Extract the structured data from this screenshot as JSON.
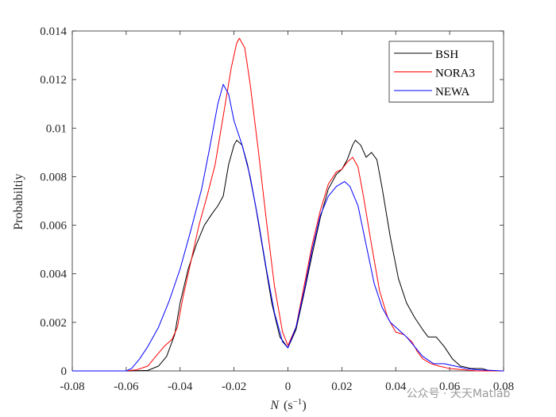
{
  "chart_data": {
    "type": "line",
    "xlabel_italic": "N",
    "xlabel_units": "(s",
    "xlabel_exp": "−1",
    "xlabel_close": ")",
    "ylabel": "Probabiltiy",
    "xlim": [
      -0.08,
      0.08
    ],
    "ylim": [
      0,
      0.014
    ],
    "xticks": [
      -0.08,
      -0.06,
      -0.04,
      -0.02,
      0,
      0.02,
      0.04,
      0.06,
      0.08
    ],
    "xtick_labels": [
      "-0.08",
      "-0.06",
      "-0.04",
      "-0.02",
      "0",
      "0.02",
      "0.04",
      "0.06",
      "0.08"
    ],
    "yticks": [
      0,
      0.002,
      0.004,
      0.006,
      0.008,
      0.01,
      0.012,
      0.014
    ],
    "ytick_labels": [
      "0",
      "0.002",
      "0.004",
      "0.006",
      "0.008",
      "0.01",
      "0.012",
      "0.014"
    ],
    "grid": false,
    "legend_position": "top-right",
    "series": [
      {
        "name": "BSH",
        "color": "#000000",
        "points": [
          [
            -0.08,
            0
          ],
          [
            -0.06,
            0
          ],
          [
            -0.052,
            2e-05
          ],
          [
            -0.048,
            0.0002
          ],
          [
            -0.045,
            0.0006
          ],
          [
            -0.042,
            0.0015
          ],
          [
            -0.04,
            0.0028
          ],
          [
            -0.037,
            0.0042
          ],
          [
            -0.034,
            0.0052
          ],
          [
            -0.031,
            0.006
          ],
          [
            -0.028,
            0.0065
          ],
          [
            -0.026,
            0.0068
          ],
          [
            -0.024,
            0.0072
          ],
          [
            -0.022,
            0.0085
          ],
          [
            -0.02,
            0.0093
          ],
          [
            -0.019,
            0.0095
          ],
          [
            -0.017,
            0.0093
          ],
          [
            -0.015,
            0.0085
          ],
          [
            -0.012,
            0.0068
          ],
          [
            -0.009,
            0.0048
          ],
          [
            -0.006,
            0.0028
          ],
          [
            -0.003,
            0.0014
          ],
          [
            0,
            0.00095
          ],
          [
            0.003,
            0.0017
          ],
          [
            0.006,
            0.0032
          ],
          [
            0.009,
            0.0048
          ],
          [
            0.012,
            0.0063
          ],
          [
            0.015,
            0.0075
          ],
          [
            0.018,
            0.0081
          ],
          [
            0.02,
            0.0083
          ],
          [
            0.022,
            0.0087
          ],
          [
            0.024,
            0.0093
          ],
          [
            0.025,
            0.0095
          ],
          [
            0.027,
            0.0093
          ],
          [
            0.029,
            0.0088
          ],
          [
            0.031,
            0.009
          ],
          [
            0.033,
            0.0087
          ],
          [
            0.035,
            0.0075
          ],
          [
            0.038,
            0.0055
          ],
          [
            0.041,
            0.0038
          ],
          [
            0.044,
            0.0028
          ],
          [
            0.047,
            0.0022
          ],
          [
            0.05,
            0.0017
          ],
          [
            0.052,
            0.0014
          ],
          [
            0.055,
            0.0014
          ],
          [
            0.058,
            0.001
          ],
          [
            0.061,
            0.0005
          ],
          [
            0.064,
            0.0002
          ],
          [
            0.068,
            0.0001
          ],
          [
            0.072,
            0.0001
          ],
          [
            0.075,
            0
          ],
          [
            0.08,
            0
          ]
        ]
      },
      {
        "name": "NORA3",
        "color": "#ff0000",
        "points": [
          [
            -0.08,
            0
          ],
          [
            -0.06,
            0
          ],
          [
            -0.056,
            5e-05
          ],
          [
            -0.052,
            0.0002
          ],
          [
            -0.049,
            0.0006
          ],
          [
            -0.046,
            0.001
          ],
          [
            -0.043,
            0.0013
          ],
          [
            -0.041,
            0.0018
          ],
          [
            -0.039,
            0.003
          ],
          [
            -0.036,
            0.0045
          ],
          [
            -0.033,
            0.006
          ],
          [
            -0.03,
            0.0072
          ],
          [
            -0.027,
            0.0085
          ],
          [
            -0.024,
            0.0105
          ],
          [
            -0.021,
            0.0125
          ],
          [
            -0.019,
            0.0135
          ],
          [
            -0.018,
            0.0137
          ],
          [
            -0.016,
            0.0133
          ],
          [
            -0.014,
            0.0118
          ],
          [
            -0.011,
            0.0091
          ],
          [
            -0.008,
            0.0062
          ],
          [
            -0.005,
            0.0035
          ],
          [
            -0.002,
            0.0016
          ],
          [
            0,
            0.00105
          ],
          [
            0.003,
            0.0018
          ],
          [
            0.006,
            0.0035
          ],
          [
            0.009,
            0.0052
          ],
          [
            0.012,
            0.0066
          ],
          [
            0.015,
            0.0077
          ],
          [
            0.018,
            0.0082
          ],
          [
            0.02,
            0.0083
          ],
          [
            0.022,
            0.0086
          ],
          [
            0.024,
            0.0088
          ],
          [
            0.026,
            0.0084
          ],
          [
            0.028,
            0.0072
          ],
          [
            0.031,
            0.0052
          ],
          [
            0.034,
            0.0033
          ],
          [
            0.037,
            0.0022
          ],
          [
            0.04,
            0.0016
          ],
          [
            0.043,
            0.0015
          ],
          [
            0.046,
            0.0012
          ],
          [
            0.048,
            0.0008
          ],
          [
            0.05,
            0.0005
          ],
          [
            0.053,
            0.0003
          ],
          [
            0.056,
            0.0002
          ],
          [
            0.06,
            0.0001
          ],
          [
            0.065,
            5e-05
          ],
          [
            0.07,
            0
          ],
          [
            0.08,
            0
          ]
        ]
      },
      {
        "name": "NEWA",
        "color": "#0000ff",
        "points": [
          [
            -0.08,
            0
          ],
          [
            -0.06,
            0
          ],
          [
            -0.058,
            0.0001
          ],
          [
            -0.055,
            0.0005
          ],
          [
            -0.052,
            0.001
          ],
          [
            -0.048,
            0.0018
          ],
          [
            -0.044,
            0.0029
          ],
          [
            -0.04,
            0.0042
          ],
          [
            -0.036,
            0.0058
          ],
          [
            -0.032,
            0.0075
          ],
          [
            -0.029,
            0.0092
          ],
          [
            -0.026,
            0.011
          ],
          [
            -0.024,
            0.0118
          ],
          [
            -0.022,
            0.0114
          ],
          [
            -0.02,
            0.0103
          ],
          [
            -0.017,
            0.0093
          ],
          [
            -0.014,
            0.008
          ],
          [
            -0.011,
            0.0062
          ],
          [
            -0.008,
            0.0042
          ],
          [
            -0.005,
            0.0024
          ],
          [
            -0.002,
            0.0012
          ],
          [
            0,
            0.00095
          ],
          [
            0.003,
            0.0018
          ],
          [
            0.006,
            0.0033
          ],
          [
            0.009,
            0.005
          ],
          [
            0.012,
            0.0064
          ],
          [
            0.015,
            0.0072
          ],
          [
            0.018,
            0.0076
          ],
          [
            0.021,
            0.0078
          ],
          [
            0.023,
            0.0076
          ],
          [
            0.026,
            0.0068
          ],
          [
            0.029,
            0.0052
          ],
          [
            0.032,
            0.0036
          ],
          [
            0.035,
            0.0026
          ],
          [
            0.038,
            0.002
          ],
          [
            0.041,
            0.0017
          ],
          [
            0.044,
            0.0014
          ],
          [
            0.047,
            0.001
          ],
          [
            0.05,
            0.0006
          ],
          [
            0.054,
            0.0003
          ],
          [
            0.058,
            0.0003
          ],
          [
            0.062,
            0.0002
          ],
          [
            0.066,
            0.0001
          ],
          [
            0.07,
            5e-05
          ],
          [
            0.08,
            0
          ]
        ]
      }
    ]
  },
  "watermark": "公众号 · 天天Matlab"
}
